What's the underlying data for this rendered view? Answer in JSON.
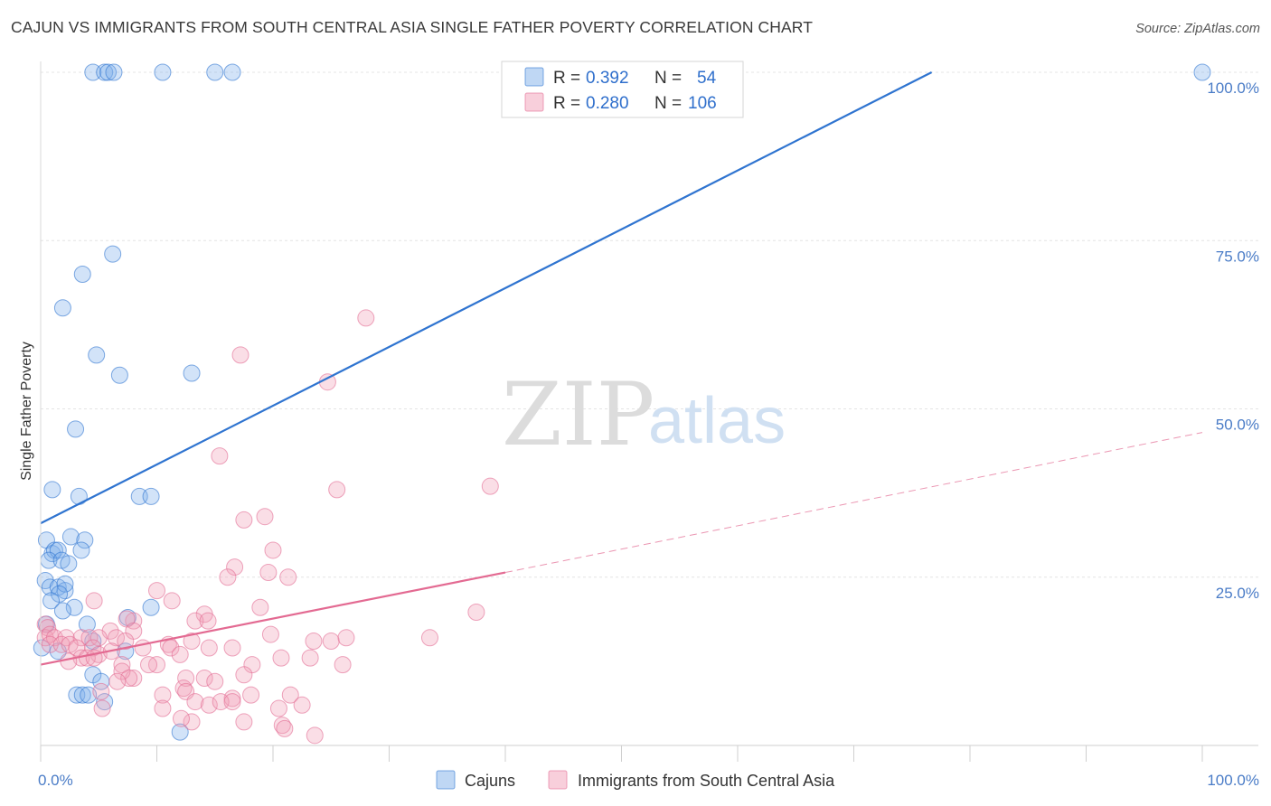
{
  "title": "CAJUN VS IMMIGRANTS FROM SOUTH CENTRAL ASIA SINGLE FATHER POVERTY CORRELATION CHART",
  "source": "Source: ZipAtlas.com",
  "watermark": {
    "zip": "ZIP",
    "atlas": "atlas"
  },
  "colors": {
    "cajun": "#7fb0ea",
    "cajun_line": "#2f74d0",
    "immigrants": "#f2a0b8",
    "immigrants_line": "#e36a92",
    "tick": "#4a7cc7",
    "grid": "#e4e4e4"
  },
  "legend": {
    "r_label": "R =",
    "n_label": "N =",
    "rows": [
      {
        "r": "0.392",
        "n": "54"
      },
      {
        "r": "0.280",
        "n": "106"
      }
    ]
  },
  "chart_data": {
    "type": "scatter",
    "title": "CAJUN VS IMMIGRANTS FROM SOUTH CENTRAL ASIA SINGLE FATHER POVERTY CORRELATION CHART",
    "xlabel": "",
    "ylabel": "Single Father Poverty",
    "xlim": [
      0,
      100
    ],
    "ylim": [
      0,
      100
    ],
    "x_tick_labels": [
      "0.0%",
      "100.0%"
    ],
    "y_ticks": [
      25,
      50,
      75,
      100
    ],
    "y_tick_labels": [
      "25.0%",
      "50.0%",
      "75.0%",
      "100.0%"
    ],
    "grid": true,
    "legend_position": "top-center",
    "series": [
      {
        "name": "Cajuns",
        "r": 0.392,
        "n": 54,
        "trend": {
          "x": [
            0,
            76.7
          ],
          "y": [
            33,
            100
          ]
        },
        "points": [
          [
            4.5,
            100
          ],
          [
            5.5,
            100
          ],
          [
            5.8,
            100
          ],
          [
            6.3,
            100
          ],
          [
            10.5,
            100
          ],
          [
            15,
            100
          ],
          [
            16.5,
            100
          ],
          [
            100,
            100
          ],
          [
            6.2,
            73
          ],
          [
            3.6,
            70
          ],
          [
            1.9,
            65
          ],
          [
            4.8,
            58
          ],
          [
            6.8,
            55
          ],
          [
            13,
            55.3
          ],
          [
            3,
            47
          ],
          [
            1,
            38
          ],
          [
            3.3,
            37
          ],
          [
            8.5,
            37
          ],
          [
            9.5,
            37
          ],
          [
            0.5,
            30.5
          ],
          [
            2.6,
            31
          ],
          [
            3.8,
            30.5
          ],
          [
            1,
            28.5
          ],
          [
            1.2,
            29
          ],
          [
            1.5,
            29
          ],
          [
            3.5,
            29
          ],
          [
            0.7,
            27.5
          ],
          [
            1.8,
            27.5
          ],
          [
            2.4,
            27
          ],
          [
            0.4,
            24.5
          ],
          [
            0.8,
            23.5
          ],
          [
            1.5,
            23.5
          ],
          [
            2.1,
            23
          ],
          [
            2.1,
            24
          ],
          [
            1.6,
            22.5
          ],
          [
            0.9,
            21.5
          ],
          [
            2.9,
            20.5
          ],
          [
            1.9,
            20
          ],
          [
            7.5,
            19
          ],
          [
            9.5,
            20.5
          ],
          [
            0.5,
            18
          ],
          [
            4,
            18
          ],
          [
            4.5,
            15.5
          ],
          [
            7.3,
            14
          ],
          [
            1.5,
            14
          ],
          [
            0.1,
            14.5
          ],
          [
            4.5,
            10.5
          ],
          [
            5.2,
            9.5
          ],
          [
            3.1,
            7.5
          ],
          [
            3.6,
            7.5
          ],
          [
            4.1,
            7.5
          ],
          [
            5.5,
            6.5
          ],
          [
            12,
            2
          ]
        ]
      },
      {
        "name": "Immigrants from South Central Asia",
        "r": 0.28,
        "n": 106,
        "trend": {
          "x": [
            0,
            40
          ],
          "y": [
            12,
            25.7
          ]
        },
        "trend_dashed": {
          "x": [
            40,
            100
          ],
          "y": [
            25.7,
            46.5
          ]
        },
        "points": [
          [
            28,
            63.5
          ],
          [
            17.2,
            58
          ],
          [
            24.7,
            54
          ],
          [
            15.4,
            43
          ],
          [
            38.7,
            38.5
          ],
          [
            25.5,
            38
          ],
          [
            19.3,
            34
          ],
          [
            17.5,
            33.5
          ],
          [
            20,
            29
          ],
          [
            16.7,
            26.5
          ],
          [
            19.6,
            25.7
          ],
          [
            21.3,
            25
          ],
          [
            16.1,
            25
          ],
          [
            10,
            23
          ],
          [
            11.3,
            21.5
          ],
          [
            4.6,
            21.5
          ],
          [
            18.9,
            20.5
          ],
          [
            37.5,
            19.8
          ],
          [
            8,
            18.5
          ],
          [
            7.4,
            18.8
          ],
          [
            14.1,
            19.5
          ],
          [
            13.3,
            18.5
          ],
          [
            14.4,
            18.5
          ],
          [
            0.4,
            18
          ],
          [
            0.6,
            17.5
          ],
          [
            8,
            17
          ],
          [
            6,
            17
          ],
          [
            19.8,
            16.5
          ],
          [
            0.4,
            16
          ],
          [
            0.8,
            16.5
          ],
          [
            1.2,
            16
          ],
          [
            2.2,
            16
          ],
          [
            3.5,
            16
          ],
          [
            4.2,
            16
          ],
          [
            5,
            16
          ],
          [
            6.5,
            16
          ],
          [
            7.3,
            15.5
          ],
          [
            11,
            15
          ],
          [
            13,
            15.5
          ],
          [
            14.5,
            14.5
          ],
          [
            16.5,
            14.5
          ],
          [
            25,
            15.5
          ],
          [
            23.5,
            15.5
          ],
          [
            33.5,
            16
          ],
          [
            26.3,
            16
          ],
          [
            0.8,
            15
          ],
          [
            1.8,
            15
          ],
          [
            2.5,
            15
          ],
          [
            3.1,
            14.5
          ],
          [
            4.5,
            14.5
          ],
          [
            5,
            13.5
          ],
          [
            6.1,
            14
          ],
          [
            8.8,
            14.5
          ],
          [
            11.2,
            14.5
          ],
          [
            12,
            13.5
          ],
          [
            10,
            12
          ],
          [
            9.3,
            12
          ],
          [
            3.5,
            13
          ],
          [
            4,
            13
          ],
          [
            4.6,
            13
          ],
          [
            2.4,
            12.5
          ],
          [
            7,
            12
          ],
          [
            18.2,
            12
          ],
          [
            20.7,
            13
          ],
          [
            23.2,
            13
          ],
          [
            26,
            12
          ],
          [
            17.5,
            10.5
          ],
          [
            12.5,
            10
          ],
          [
            14.1,
            10
          ],
          [
            15,
            9.5
          ],
          [
            8,
            10
          ],
          [
            7,
            11
          ],
          [
            7.6,
            10
          ],
          [
            6.6,
            9.5
          ],
          [
            5.2,
            8
          ],
          [
            12.3,
            8.5
          ],
          [
            10.5,
            7.5
          ],
          [
            12.5,
            8
          ],
          [
            16.5,
            7
          ],
          [
            18.1,
            7.5
          ],
          [
            21.5,
            7.5
          ],
          [
            10.5,
            5.5
          ],
          [
            13.3,
            6.5
          ],
          [
            14.5,
            6
          ],
          [
            15.5,
            6.5
          ],
          [
            16.5,
            6.5
          ],
          [
            20.5,
            5.5
          ],
          [
            22.5,
            6
          ],
          [
            5.3,
            5.5
          ],
          [
            17.5,
            3.5
          ],
          [
            13,
            3.5
          ],
          [
            20.8,
            3
          ],
          [
            21,
            2.5
          ],
          [
            23.6,
            1.5
          ],
          [
            12.1,
            4
          ]
        ]
      }
    ]
  }
}
